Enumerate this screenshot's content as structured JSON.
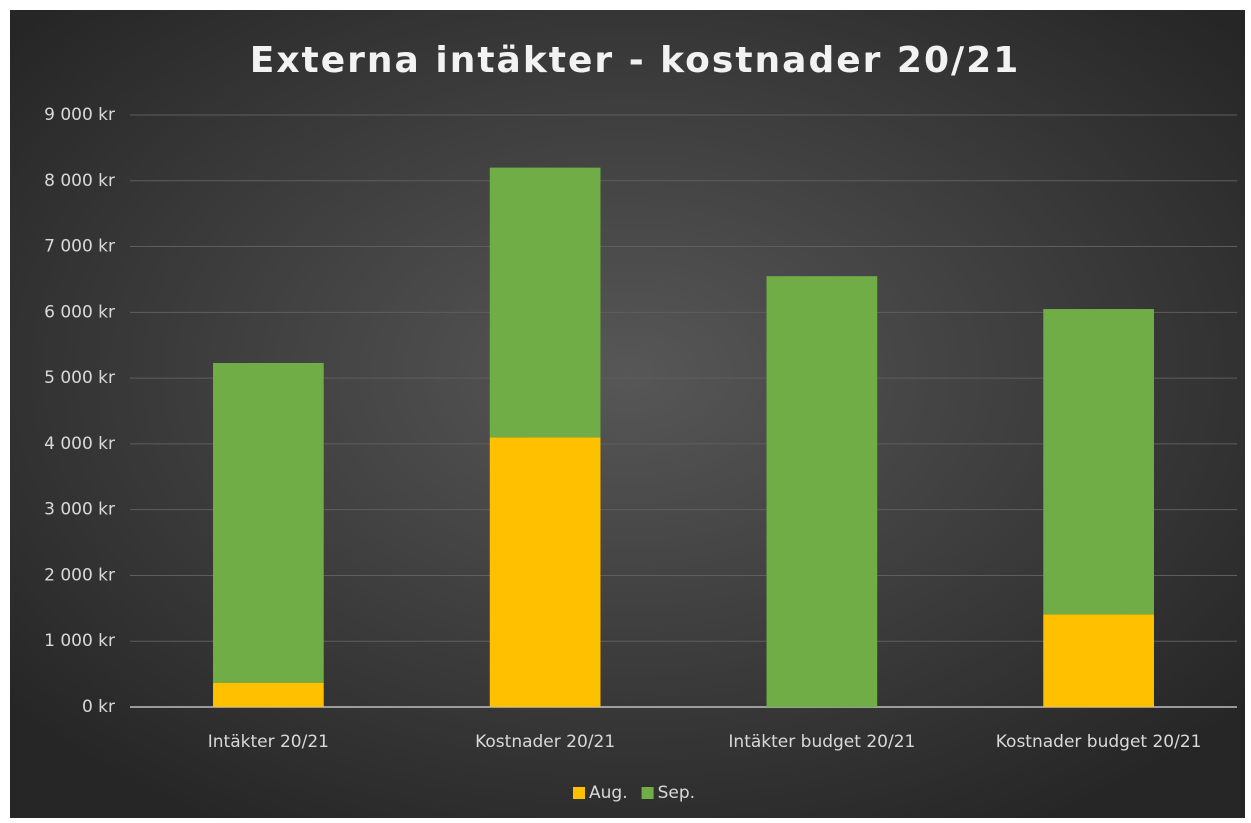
{
  "chart_data": {
    "type": "stacked_bar",
    "title": "Externa intäkter - kostnader 20/21",
    "categories": [
      "Intäkter 20/21",
      "Kostnader 20/21",
      "Intäkter budget 20/21",
      "Kostnader budget 20/21"
    ],
    "series": [
      {
        "name": "Aug.",
        "color": "#ffc000",
        "values": [
          370,
          4100,
          0,
          1410
        ]
      },
      {
        "name": "Sep.",
        "color": "#70ad47",
        "values": [
          4860,
          4100,
          6550,
          4640
        ]
      }
    ],
    "ylim": [
      0,
      9000
    ],
    "yticks": [
      {
        "value": 0,
        "label": "0 kr"
      },
      {
        "value": 1000,
        "label": "1 000 kr"
      },
      {
        "value": 2000,
        "label": "2 000 kr"
      },
      {
        "value": 3000,
        "label": "3 000 kr"
      },
      {
        "value": 4000,
        "label": "4 000 kr"
      },
      {
        "value": 5000,
        "label": "5 000 kr"
      },
      {
        "value": 6000,
        "label": "6 000 kr"
      },
      {
        "value": 7000,
        "label": "7 000 kr"
      },
      {
        "value": 8000,
        "label": "8 000 kr"
      },
      {
        "value": 9000,
        "label": "9 000 kr"
      }
    ],
    "grid": true,
    "legend": "bottom"
  }
}
